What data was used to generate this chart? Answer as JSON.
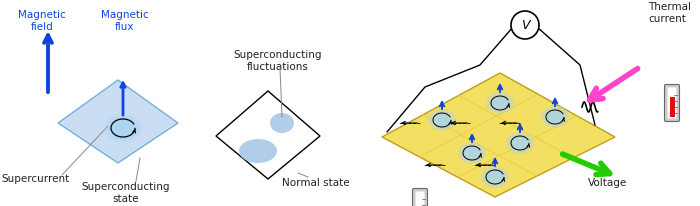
{
  "bg_color": "#ffffff",
  "blue": "#1144dd",
  "blue_dark": "#0033cc",
  "light_blue_plate": "#b8d4f0",
  "blue_blob": "#99bbdd",
  "yellow_plate": "#f5e060",
  "yellow_plate_edge": "#ccaa00",
  "magenta": "#ff44cc",
  "green": "#22cc00",
  "text_black": "#222222",
  "gray_line": "#888888",
  "panel1": {
    "mag_field": "Magnetic\nfield",
    "mag_flux": "Magnetic\nflux",
    "supercurrent": "Supercurrent",
    "sc_state": "Superconducting\nstate"
  },
  "panel2": {
    "sc_fluct": "Superconducting\nfluctuations",
    "normal": "Normal state"
  },
  "panel3": {
    "thermal": "Thermal\ncurrent",
    "voltage": "Voltage"
  },
  "figsize": [
    7.0,
    2.06
  ],
  "dpi": 100
}
